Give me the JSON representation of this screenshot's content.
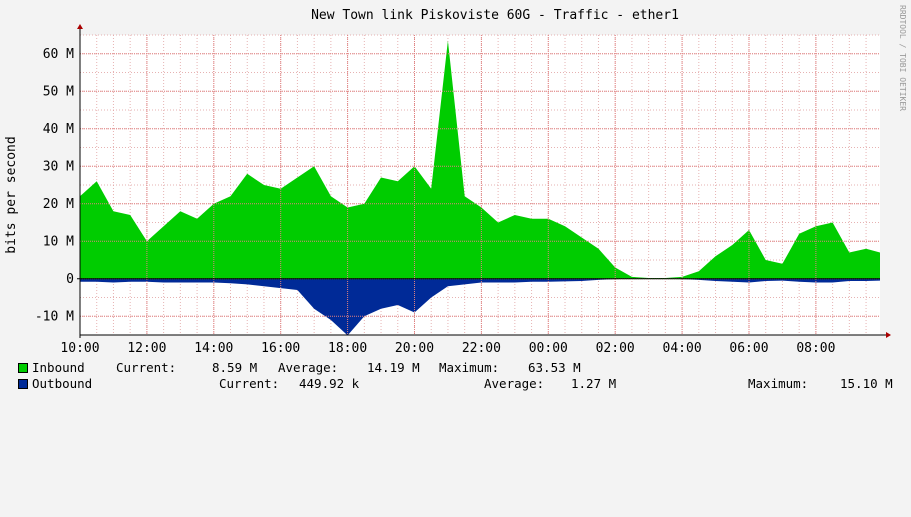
{
  "chart_data": {
    "type": "area",
    "title": "New Town link Piskoviste 60G - Traffic - ether1",
    "ylabel": "bits per second",
    "xlabel": "",
    "watermark": "RRDTOOL / TOBI OETIKER",
    "ylim": [
      -15000000,
      65000000
    ],
    "yticks": [
      {
        "v": 60000000,
        "label": "60 M"
      },
      {
        "v": 50000000,
        "label": "50 M"
      },
      {
        "v": 40000000,
        "label": "40 M"
      },
      {
        "v": 30000000,
        "label": "30 M"
      },
      {
        "v": 20000000,
        "label": "20 M"
      },
      {
        "v": 10000000,
        "label": "10 M"
      },
      {
        "v": 0,
        "label": "0"
      },
      {
        "v": -10000000,
        "label": "-10 M"
      }
    ],
    "x_range": [
      "10:00",
      "09:55"
    ],
    "xticks": [
      "10:00",
      "12:00",
      "14:00",
      "16:00",
      "18:00",
      "20:00",
      "22:00",
      "00:00",
      "02:00",
      "04:00",
      "06:00",
      "08:00"
    ],
    "grid": true,
    "colors": {
      "inbound": "#00cc00",
      "outbound": "#002a97",
      "grid_major": "#e08080",
      "grid_minor": "#e0a0a0",
      "background": "#f3f3f3",
      "plot_bg": "#ffffff"
    },
    "series": [
      {
        "name": "Inbound",
        "unit": "Mbps",
        "x": [
          "10:00",
          "10:30",
          "11:00",
          "11:30",
          "12:00",
          "12:30",
          "13:00",
          "13:30",
          "14:00",
          "14:30",
          "15:00",
          "15:30",
          "16:00",
          "16:30",
          "17:00",
          "17:30",
          "18:00",
          "18:30",
          "19:00",
          "19:30",
          "20:00",
          "20:30",
          "21:00",
          "21:30",
          "22:00",
          "22:30",
          "23:00",
          "23:30",
          "00:00",
          "00:30",
          "01:00",
          "01:30",
          "02:00",
          "02:30",
          "03:00",
          "03:30",
          "04:00",
          "04:30",
          "05:00",
          "05:30",
          "06:00",
          "06:30",
          "07:00",
          "07:30",
          "08:00",
          "08:30",
          "09:00",
          "09:30",
          "09:55"
        ],
        "values": [
          22,
          26,
          18,
          17,
          10,
          14,
          18,
          16,
          20,
          22,
          28,
          25,
          24,
          27,
          30,
          22,
          19,
          20,
          27,
          26,
          30,
          24,
          63.5,
          22,
          19,
          15,
          17,
          16,
          16,
          14,
          11,
          8,
          3,
          0.5,
          0.2,
          0.2,
          0.5,
          2,
          6,
          9,
          13,
          5,
          4,
          12,
          14,
          15,
          7,
          8,
          7
        ]
      },
      {
        "name": "Outbound",
        "unit": "Mbps",
        "x": [
          "10:00",
          "10:30",
          "11:00",
          "11:30",
          "12:00",
          "12:30",
          "13:00",
          "13:30",
          "14:00",
          "14:30",
          "15:00",
          "15:30",
          "16:00",
          "16:30",
          "17:00",
          "17:30",
          "18:00",
          "18:30",
          "19:00",
          "19:30",
          "20:00",
          "20:30",
          "21:00",
          "21:30",
          "22:00",
          "22:30",
          "23:00",
          "23:30",
          "00:00",
          "00:30",
          "01:00",
          "01:30",
          "02:00",
          "02:30",
          "03:00",
          "03:30",
          "04:00",
          "04:30",
          "05:00",
          "05:30",
          "06:00",
          "06:30",
          "07:00",
          "07:30",
          "08:00",
          "08:30",
          "09:00",
          "09:30",
          "09:55"
        ],
        "values": [
          -0.8,
          -0.8,
          -1,
          -0.8,
          -0.8,
          -1,
          -1,
          -1,
          -1,
          -1.2,
          -1.5,
          -2,
          -2.5,
          -3,
          -8,
          -11,
          -15.1,
          -10,
          -8,
          -7,
          -9,
          -5,
          -2,
          -1.5,
          -1,
          -1,
          -1,
          -0.8,
          -0.8,
          -0.7,
          -0.6,
          -0.3,
          -0.1,
          0,
          0,
          0,
          -0.1,
          -0.3,
          -0.6,
          -0.8,
          -1,
          -0.6,
          -0.5,
          -0.8,
          -1,
          -1,
          -0.6,
          -0.6,
          -0.5
        ]
      }
    ]
  },
  "legend": [
    {
      "name": "Inbound",
      "current_label": "Current:",
      "current": "8.59 M",
      "average_label": "Average:",
      "average": "14.19 M",
      "maximum_label": "Maximum:",
      "maximum": "63.53 M"
    },
    {
      "name": "Outbound",
      "current_label": "Current:",
      "current": "449.92 k",
      "average_label": "Average:",
      "average": "1.27 M",
      "maximum_label": "Maximum:",
      "maximum": "15.10 M"
    }
  ]
}
